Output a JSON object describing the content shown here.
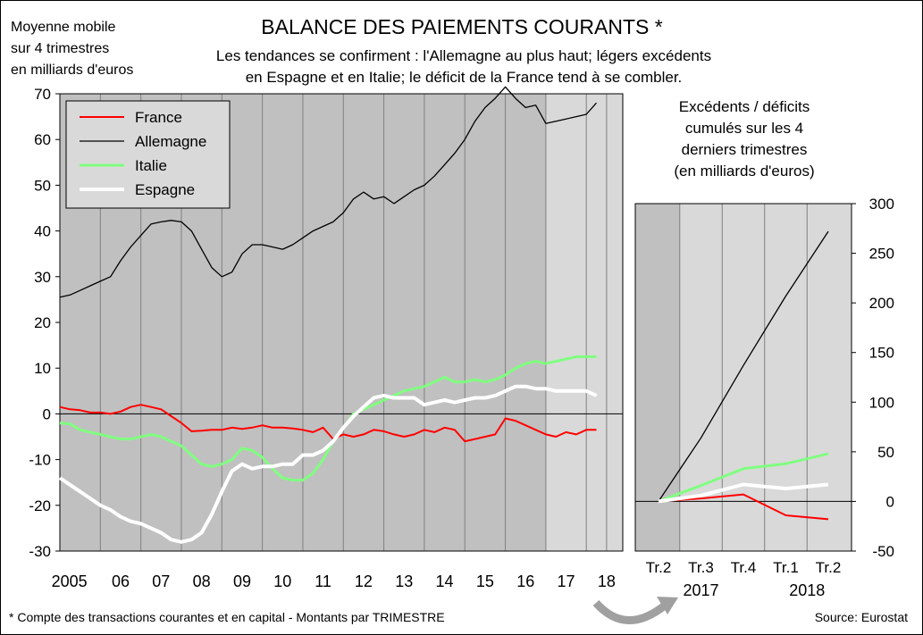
{
  "title": "BALANCE DES PAIEMENTS COURANTS *",
  "subtitle_line1": "Les tendances se confirment : l'Allemagne au plus haut; légers excédents",
  "subtitle_line2": "en Espagne et en Italie; le déficit de la France tend à se combler.",
  "y_unit_line1": "Moyenne mobile",
  "y_unit_line2": "sur 4 trimestres",
  "y_unit_line3": "en milliards d'euros",
  "right_title_line1": "Excédents / déficits",
  "right_title_line2": "cumulés sur les 4",
  "right_title_line3": "derniers trimestres",
  "right_title_line4": "(en milliards d'euros)",
  "footnote": "* Compte des transactions courantes et en capital - Montants par TRIMESTRE",
  "source": "Source: Eurostat",
  "colors": {
    "France": "#ff0000",
    "Allemagne": "#000000",
    "Italie": "#80ff80",
    "Espagne": "#ffffff",
    "plot_bg": "#c0c0c0",
    "shade_bg": "#d9d9d9"
  },
  "chart_data": [
    {
      "type": "line",
      "title": "Moyenne mobile sur 4 trimestres en milliards d'euros",
      "ylim": [
        -30,
        70
      ],
      "yticks": [
        -30,
        -20,
        -10,
        0,
        10,
        20,
        30,
        40,
        50,
        60,
        70
      ],
      "xlim": [
        2005,
        2018.9
      ],
      "xtick_labels": [
        "2005",
        "06",
        "07",
        "08",
        "09",
        "10",
        "11",
        "12",
        "13",
        "14",
        "15",
        "16",
        "17",
        "18"
      ],
      "legend": "top-left",
      "series": [
        {
          "name": "France",
          "color": "#ff0000",
          "width": 2,
          "x": [
            2005.0,
            2005.25,
            2005.5,
            2005.75,
            2006.0,
            2006.25,
            2006.5,
            2006.75,
            2007.0,
            2007.25,
            2007.5,
            2007.75,
            2008.0,
            2008.25,
            2008.5,
            2008.75,
            2009.0,
            2009.25,
            2009.5,
            2009.75,
            2010.0,
            2010.25,
            2010.5,
            2010.75,
            2011.0,
            2011.25,
            2011.5,
            2011.75,
            2012.0,
            2012.25,
            2012.5,
            2012.75,
            2013.0,
            2013.25,
            2013.5,
            2013.75,
            2014.0,
            2014.25,
            2014.5,
            2014.75,
            2015.0,
            2015.25,
            2015.5,
            2015.75,
            2016.0,
            2016.25,
            2016.5,
            2016.75,
            2017.0,
            2017.25,
            2017.5,
            2017.75,
            2018.0,
            2018.25
          ],
          "y": [
            1.5,
            1.0,
            0.8,
            0.3,
            0.3,
            0.0,
            0.5,
            1.5,
            2.0,
            1.5,
            1.0,
            -0.5,
            -2.0,
            -3.8,
            -3.7,
            -3.5,
            -3.5,
            -3.0,
            -3.3,
            -3.0,
            -2.5,
            -3.0,
            -3.0,
            -3.2,
            -3.5,
            -4.0,
            -3.0,
            -5.5,
            -4.5,
            -5.0,
            -4.5,
            -3.5,
            -3.8,
            -4.5,
            -5.0,
            -4.5,
            -3.5,
            -4.0,
            -3.0,
            -3.5,
            -6.0,
            -5.5,
            -5.0,
            -4.5,
            -1.0,
            -1.5,
            -2.5,
            -3.5,
            -4.5,
            -5.0,
            -4.0,
            -4.5,
            -3.5,
            -3.5
          ]
        },
        {
          "name": "Allemagne",
          "color": "#000000",
          "width": 1.3,
          "x": [
            2005.0,
            2005.25,
            2005.5,
            2005.75,
            2006.0,
            2006.25,
            2006.5,
            2006.75,
            2007.0,
            2007.25,
            2007.5,
            2007.75,
            2008.0,
            2008.25,
            2008.5,
            2008.75,
            2009.0,
            2009.25,
            2009.5,
            2009.75,
            2010.0,
            2010.25,
            2010.5,
            2010.75,
            2011.0,
            2011.25,
            2011.5,
            2011.75,
            2012.0,
            2012.25,
            2012.5,
            2012.75,
            2013.0,
            2013.25,
            2013.5,
            2013.75,
            2014.0,
            2014.25,
            2014.5,
            2014.75,
            2015.0,
            2015.25,
            2015.5,
            2015.75,
            2016.0,
            2016.25,
            2016.5,
            2016.75,
            2017.0,
            2017.25,
            2017.5,
            2017.75,
            2018.0,
            2018.25
          ],
          "y": [
            25.5,
            26.0,
            27.0,
            28.0,
            29.0,
            30.0,
            33.5,
            36.5,
            39.0,
            41.5,
            42.0,
            42.3,
            42.0,
            40.0,
            36.0,
            32.0,
            30.0,
            31.0,
            35.0,
            37.0,
            37.0,
            36.5,
            36.0,
            37.0,
            38.5,
            40.0,
            41.0,
            42.0,
            44.0,
            47.0,
            48.5,
            47.0,
            47.5,
            46.0,
            47.5,
            49.0,
            50.0,
            52.0,
            54.5,
            57.0,
            60.0,
            64.0,
            67.0,
            69.0,
            71.5,
            69.0,
            67.0,
            67.5,
            63.5,
            64.0,
            64.5,
            65.0,
            65.5,
            68.0
          ]
        },
        {
          "name": "Italie",
          "color": "#80ff80",
          "width": 3,
          "x": [
            2005.0,
            2005.25,
            2005.5,
            2005.75,
            2006.0,
            2006.25,
            2006.5,
            2006.75,
            2007.0,
            2007.25,
            2007.5,
            2007.75,
            2008.0,
            2008.25,
            2008.5,
            2008.75,
            2009.0,
            2009.25,
            2009.5,
            2009.75,
            2010.0,
            2010.25,
            2010.5,
            2010.75,
            2011.0,
            2011.25,
            2011.5,
            2011.75,
            2012.0,
            2012.25,
            2012.5,
            2012.75,
            2013.0,
            2013.25,
            2013.5,
            2013.75,
            2014.0,
            2014.25,
            2014.5,
            2014.75,
            2015.0,
            2015.25,
            2015.5,
            2015.75,
            2016.0,
            2016.25,
            2016.5,
            2016.75,
            2017.0,
            2017.25,
            2017.5,
            2017.75,
            2018.0,
            2018.25
          ],
          "y": [
            -2.0,
            -2.2,
            -3.5,
            -4.0,
            -4.5,
            -5.0,
            -5.5,
            -5.5,
            -5.0,
            -4.5,
            -5.0,
            -6.0,
            -7.0,
            -9.0,
            -11.0,
            -11.5,
            -11.0,
            -10.0,
            -7.5,
            -8.0,
            -9.5,
            -12.0,
            -14.0,
            -14.5,
            -14.5,
            -13.0,
            -10.0,
            -6.0,
            -3.0,
            0.0,
            1.0,
            2.0,
            3.0,
            4.0,
            5.0,
            5.5,
            6.0,
            7.0,
            8.0,
            7.0,
            7.0,
            7.5,
            7.0,
            7.5,
            8.5,
            10.0,
            11.0,
            11.5,
            11.0,
            11.5,
            12.0,
            12.5,
            12.5,
            12.5
          ]
        },
        {
          "name": "Espagne",
          "color": "#ffffff",
          "width": 4,
          "x": [
            2005.0,
            2005.25,
            2005.5,
            2005.75,
            2006.0,
            2006.25,
            2006.5,
            2006.75,
            2007.0,
            2007.25,
            2007.5,
            2007.75,
            2008.0,
            2008.25,
            2008.5,
            2008.75,
            2009.0,
            2009.25,
            2009.5,
            2009.75,
            2010.0,
            2010.25,
            2010.5,
            2010.75,
            2011.0,
            2011.25,
            2011.5,
            2011.75,
            2012.0,
            2012.25,
            2012.5,
            2012.75,
            2013.0,
            2013.25,
            2013.5,
            2013.75,
            2014.0,
            2014.25,
            2014.5,
            2014.75,
            2015.0,
            2015.25,
            2015.5,
            2015.75,
            2016.0,
            2016.25,
            2016.5,
            2016.75,
            2017.0,
            2017.25,
            2017.5,
            2017.75,
            2018.0,
            2018.25
          ],
          "y": [
            -14.0,
            -15.5,
            -17.0,
            -18.5,
            -20.0,
            -21.0,
            -22.5,
            -23.5,
            -24.0,
            -25.0,
            -26.0,
            -27.5,
            -28.0,
            -27.5,
            -26.0,
            -22.0,
            -17.0,
            -12.5,
            -11.0,
            -12.0,
            -11.5,
            -11.5,
            -11.0,
            -11.0,
            -9.0,
            -9.0,
            -8.0,
            -6.0,
            -3.0,
            -0.5,
            1.5,
            3.5,
            4.0,
            3.5,
            3.5,
            3.5,
            2.0,
            2.5,
            3.0,
            2.5,
            3.0,
            3.5,
            3.5,
            4.0,
            5.0,
            6.0,
            6.0,
            5.5,
            5.5,
            5.0,
            5.0,
            5.0,
            5.0,
            4.0
          ]
        }
      ]
    },
    {
      "type": "line",
      "title": "Excédents / déficits cumulés sur les 4 derniers trimestres (en milliards d'euros)",
      "ylim": [
        -50,
        300
      ],
      "yticks": [
        -50,
        0,
        50,
        100,
        150,
        200,
        250,
        300
      ],
      "xtick_labels": [
        "Tr.2",
        "Tr.3",
        "Tr.4",
        "Tr.1",
        "Tr.2"
      ],
      "year_labels": [
        "2017",
        "2018"
      ],
      "series": [
        {
          "name": "France",
          "color": "#ff0000",
          "width": 2,
          "x": [
            0,
            1,
            2,
            3,
            4
          ],
          "y": [
            0,
            3,
            7,
            -14,
            -18
          ]
        },
        {
          "name": "Allemagne",
          "color": "#000000",
          "width": 1.3,
          "x": [
            0,
            1,
            2,
            3,
            4
          ],
          "y": [
            0,
            64,
            137,
            207,
            272
          ]
        },
        {
          "name": "Italie",
          "color": "#80ff80",
          "width": 3,
          "x": [
            0,
            1,
            2,
            3,
            4
          ],
          "y": [
            0,
            16,
            33,
            38,
            48
          ]
        },
        {
          "name": "Espagne",
          "color": "#ffffff",
          "width": 4,
          "x": [
            0,
            1,
            2,
            3,
            4
          ],
          "y": [
            0,
            6,
            17,
            13,
            17
          ]
        }
      ]
    }
  ]
}
